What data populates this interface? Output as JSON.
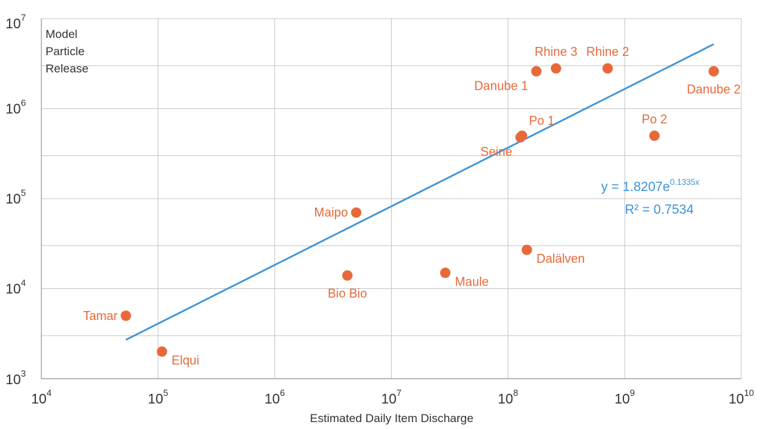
{
  "chart_data": {
    "type": "scatter",
    "title": "",
    "xlabel": "Estimated Daily Item Discharge",
    "ylabel_lines": [
      "Model",
      "Particle",
      "Release"
    ],
    "x_scale": "log",
    "y_scale": "log",
    "xlim": [
      10000,
      10000000000
    ],
    "ylim": [
      1000,
      10000000
    ],
    "grid": true,
    "x_ticks": [
      {
        "base": "10",
        "exp": "4",
        "value": 10000
      },
      {
        "base": "10",
        "exp": "5",
        "value": 100000
      },
      {
        "base": "10",
        "exp": "6",
        "value": 1000000
      },
      {
        "base": "10",
        "exp": "7",
        "value": 10000000
      },
      {
        "base": "10",
        "exp": "8",
        "value": 100000000
      },
      {
        "base": "10",
        "exp": "9",
        "value": 1000000000
      },
      {
        "base": "10",
        "exp": "10",
        "value": 10000000000
      }
    ],
    "y_ticks": [
      {
        "base": "10",
        "exp": "3",
        "value": 1000
      },
      {
        "base": "10",
        "exp": "4",
        "value": 10000
      },
      {
        "base": "10",
        "exp": "5",
        "value": 100000
      },
      {
        "base": "10",
        "exp": "6",
        "value": 1000000
      },
      {
        "base": "10",
        "exp": "7",
        "value": 10000000
      }
    ],
    "points": [
      {
        "label": "Tamar",
        "x": 53000,
        "y": 5000,
        "label_pos": "left"
      },
      {
        "label": "Elqui",
        "x": 108000,
        "y": 2000,
        "label_pos": "right-below"
      },
      {
        "label": "Maipo",
        "x": 5000000,
        "y": 70000,
        "label_pos": "left"
      },
      {
        "label": "Bio Bio",
        "x": 4200000,
        "y": 14000,
        "label_pos": "below"
      },
      {
        "label": "Maule",
        "x": 29000000,
        "y": 15000,
        "label_pos": "right-below"
      },
      {
        "label": "Dalälven",
        "x": 145000000,
        "y": 27000,
        "label_pos": "right-below"
      },
      {
        "label": "Seine",
        "x": 128000000,
        "y": 480000,
        "label_pos": "left-below"
      },
      {
        "label": "Po 1",
        "x": 132000000,
        "y": 500000,
        "label_pos": "right-above"
      },
      {
        "label": "Danube 1",
        "x": 175000000,
        "y": 2600000,
        "label_pos": "left-below"
      },
      {
        "label": "Rhine 3",
        "x": 258000000,
        "y": 2800000,
        "label_pos": "above"
      },
      {
        "label": "Rhine 2",
        "x": 715000000,
        "y": 2800000,
        "label_pos": "above"
      },
      {
        "label": "Po 2",
        "x": 1800000000,
        "y": 500000,
        "label_pos": "above"
      },
      {
        "label": "Danube 2",
        "x": 5800000000,
        "y": 2600000,
        "label_pos": "below"
      }
    ],
    "trendline": {
      "type": "exponential",
      "equation_prefix": "y = 1.8207e",
      "equation_exponent": "0.1335x",
      "r2_text": "R² = 0.7534",
      "x_start": 53000,
      "x_end": 5800000000,
      "y_start": 2700,
      "y_end": 5200000
    },
    "colors": {
      "points": "#e8683a",
      "labels": "#e8683a",
      "trendline": "#3b93d9",
      "equation": "#3b93d9",
      "grid": "#c8c8c8",
      "axis": "#999999"
    }
  }
}
